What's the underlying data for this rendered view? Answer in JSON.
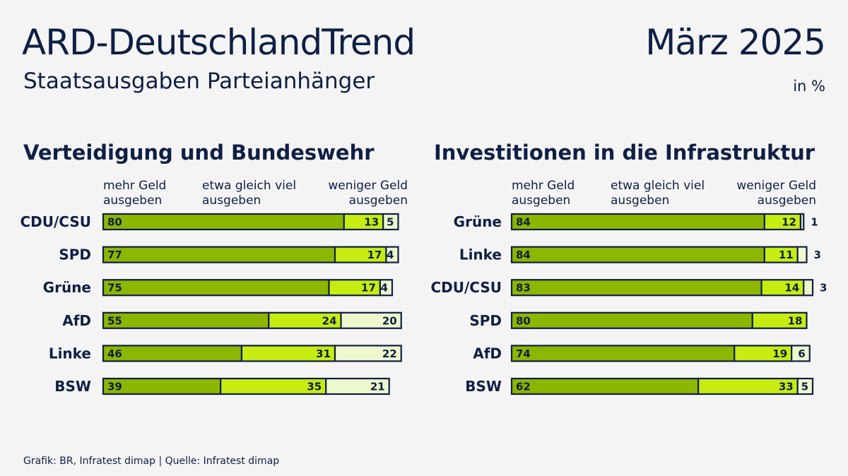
{
  "header": {
    "title": "ARD-DeutschlandTrend",
    "subtitle": "Staatsausgaben Parteianhänger",
    "date": "März 2025",
    "unit": "in %"
  },
  "legend": {
    "more": [
      "mehr Geld",
      "ausgeben"
    ],
    "same": [
      "etwa gleich viel",
      "ausgeben"
    ],
    "less": [
      "weniger Geld",
      "ausgeben"
    ]
  },
  "source": "Grafik: BR, Infratest dimap | Quelle: Infratest dimap",
  "colors": {
    "more": "#8db600",
    "same": "#c6ec12",
    "less": "#eef8cd",
    "border": "#0f1f44"
  },
  "chart_data": [
    {
      "type": "bar",
      "stacked": true,
      "orientation": "horizontal",
      "title": "Verteidigung und Bundeswehr",
      "categories": [
        "CDU/CSU",
        "SPD",
        "Grüne",
        "AfD",
        "Linke",
        "BSW"
      ],
      "series": [
        {
          "name": "mehr Geld ausgeben",
          "values": [
            80,
            77,
            75,
            55,
            46,
            39
          ]
        },
        {
          "name": "etwa gleich viel ausgeben",
          "values": [
            13,
            17,
            17,
            24,
            31,
            35
          ]
        },
        {
          "name": "weniger Geld ausgeben",
          "values": [
            5,
            4,
            4,
            20,
            22,
            21
          ]
        }
      ],
      "xlim": [
        0,
        100
      ]
    },
    {
      "type": "bar",
      "stacked": true,
      "orientation": "horizontal",
      "title": "Investitionen in die Infrastruktur",
      "categories": [
        "Grüne",
        "Linke",
        "CDU/CSU",
        "SPD",
        "AfD",
        "BSW"
      ],
      "series": [
        {
          "name": "mehr Geld ausgeben",
          "values": [
            84,
            84,
            83,
            80,
            74,
            62
          ]
        },
        {
          "name": "etwa gleich viel ausgeben",
          "values": [
            12,
            11,
            14,
            18,
            19,
            33
          ]
        },
        {
          "name": "weniger Geld ausgeben",
          "values": [
            1,
            3,
            3,
            null,
            6,
            5
          ]
        }
      ],
      "xlim": [
        0,
        100
      ]
    }
  ]
}
